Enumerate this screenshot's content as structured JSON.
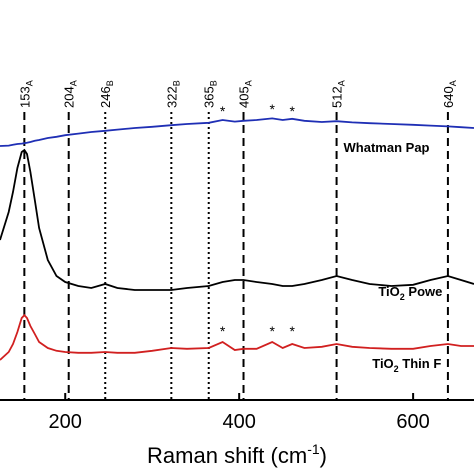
{
  "chart_data": {
    "type": "line",
    "x_label": {
      "text": "Raman shift (cm",
      "sup": "-1",
      "post": ")"
    },
    "xlim": [
      125,
      670
    ],
    "ylim": [
      0,
      100
    ],
    "xticks": [
      200,
      400,
      600
    ],
    "x": [
      125,
      135,
      140,
      145,
      150,
      153,
      156,
      160,
      165,
      170,
      180,
      190,
      200,
      215,
      230,
      246,
      260,
      280,
      300,
      322,
      340,
      365,
      381,
      395,
      405,
      420,
      438,
      450,
      461,
      475,
      495,
      512,
      530,
      550,
      575,
      600,
      620,
      640,
      655,
      670
    ],
    "series": [
      {
        "name": {
          "pre": "Whatman Pap",
          "sub": "",
          "post": ""
        },
        "label_at": [
          520,
          62
        ],
        "color": "#1f2fb5",
        "values": [
          63.5,
          63.6,
          63.8,
          64,
          64.1,
          64.2,
          64.3,
          64.5,
          64.8,
          65,
          65.5,
          65.8,
          66.2,
          66.6,
          67,
          67.3,
          67.6,
          68,
          68.3,
          68.7,
          69,
          69.3,
          70,
          69.6,
          69.8,
          70,
          70.4,
          70,
          70.3,
          69.8,
          69.5,
          69.7,
          69.4,
          69.2,
          69,
          68.8,
          68.6,
          68.4,
          68.2,
          68
        ]
      },
      {
        "name": {
          "pre": "TiO",
          "sub": "2",
          "post": " Powe"
        },
        "label_at": [
          560,
          26
        ],
        "color": "#000000",
        "values": [
          40,
          47,
          52,
          58,
          62,
          62.5,
          61.5,
          57,
          50,
          43,
          35,
          31,
          29.5,
          28.5,
          28,
          29,
          28,
          27.5,
          27.5,
          27.5,
          28,
          28.5,
          29.5,
          30,
          30,
          29.5,
          29,
          28.5,
          28.5,
          29,
          30,
          31,
          30,
          29,
          28.5,
          28.8,
          30,
          31,
          30,
          29
        ]
      },
      {
        "name": {
          "pre": "TiO",
          "sub": "2",
          "post": " Thin F"
        },
        "label_at": [
          553,
          8
        ],
        "color": "#d12020",
        "values": [
          10,
          12,
          14,
          17,
          20.5,
          21.2,
          20.5,
          18.5,
          16.5,
          14.5,
          13,
          12.3,
          12,
          11.8,
          11.8,
          12,
          11.8,
          11.8,
          12.3,
          13,
          12.8,
          13,
          14.5,
          12.5,
          12.8,
          12.8,
          14.5,
          13,
          14,
          13,
          13.3,
          14,
          13.3,
          13,
          12.8,
          12.8,
          13.5,
          14,
          13.5,
          13.5
        ]
      }
    ],
    "peaks": [
      {
        "value": 153,
        "sub": "A",
        "style": "dashed"
      },
      {
        "value": 204,
        "sub": "A",
        "style": "dashed"
      },
      {
        "value": 246,
        "sub": "B",
        "style": "dotted"
      },
      {
        "value": 322,
        "sub": "B",
        "style": "dotted"
      },
      {
        "value": 365,
        "sub": "B",
        "style": "dotted"
      },
      {
        "value": 405,
        "sub": "A",
        "style": "dashed"
      },
      {
        "value": 512,
        "sub": "A",
        "style": "dashed"
      },
      {
        "value": 640,
        "sub": "A",
        "style": "dashed"
      }
    ],
    "annotations": [
      {
        "x": 381,
        "y": 71,
        "label": "*"
      },
      {
        "x": 438,
        "y": 71.5,
        "label": "*"
      },
      {
        "x": 461,
        "y": 71,
        "label": "*"
      },
      {
        "x": 381,
        "y": 16,
        "label": "*"
      },
      {
        "x": 438,
        "y": 16,
        "label": "*"
      },
      {
        "x": 461,
        "y": 16,
        "label": "*"
      }
    ]
  }
}
